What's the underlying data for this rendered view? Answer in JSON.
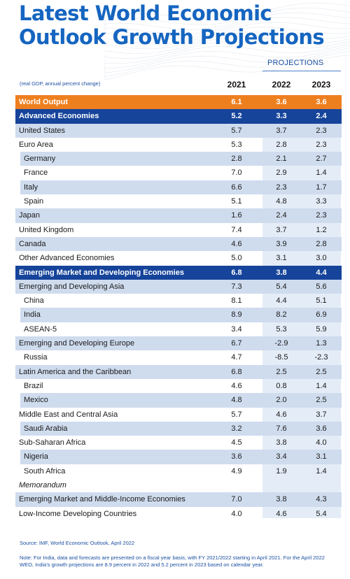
{
  "title_line1": "Latest World Economic",
  "title_line2": "Outlook Growth Projections",
  "projections_label": "PROJECTIONS",
  "unit_note": "(real GDP, annual percent change)",
  "years": [
    "2021",
    "2022",
    "2023"
  ],
  "source": "Source: IMF, World Economic Outlook, April 2022",
  "note": "Note: For India, data and forecasts are presented on a fiscal year basis, with FY 2021/2022 starting in April 2021. For the April 2022 WEO, India's growth projections are 8.9 percent in 2022 and 5.2 percent in 2023 based on calendar year.",
  "colors": {
    "title": "#1565c0",
    "world": "#ee7f1f",
    "navy": "#16449a",
    "shade": "#cfdcee",
    "projection_shade": "#e4ecf7"
  },
  "chart_data": {
    "type": "table",
    "columns": [
      "2021",
      "2022",
      "2023"
    ],
    "rows": [
      {
        "label": "World Output",
        "values": [
          "6.1",
          "3.6",
          "3.6"
        ],
        "style": "world"
      },
      {
        "label": "Advanced Economies",
        "values": [
          "5.2",
          "3.3",
          "2.4"
        ],
        "style": "navy"
      },
      {
        "label": "United States",
        "values": [
          "5.7",
          "3.7",
          "2.3"
        ],
        "style": "shaded"
      },
      {
        "label": "Euro Area",
        "values": [
          "5.3",
          "2.8",
          "2.3"
        ],
        "style": "plain"
      },
      {
        "label": "Germany",
        "values": [
          "2.8",
          "2.1",
          "2.7"
        ],
        "style": "shaded-indent"
      },
      {
        "label": "France",
        "values": [
          "7.0",
          "2.9",
          "1.4"
        ],
        "style": "indent"
      },
      {
        "label": "Italy",
        "values": [
          "6.6",
          "2.3",
          "1.7"
        ],
        "style": "shaded-indent"
      },
      {
        "label": "Spain",
        "values": [
          "5.1",
          "4.8",
          "3.3"
        ],
        "style": "indent"
      },
      {
        "label": "Japan",
        "values": [
          "1.6",
          "2.4",
          "2.3"
        ],
        "style": "shaded"
      },
      {
        "label": "United Kingdom",
        "values": [
          "7.4",
          "3.7",
          "1.2"
        ],
        "style": "plain"
      },
      {
        "label": "Canada",
        "values": [
          "4.6",
          "3.9",
          "2.8"
        ],
        "style": "shaded"
      },
      {
        "label": "Other Advanced Economies",
        "values": [
          "5.0",
          "3.1",
          "3.0"
        ],
        "style": "plain"
      },
      {
        "label": "Emerging Market and Developing Economies",
        "values": [
          "6.8",
          "3.8",
          "4.4"
        ],
        "style": "navy"
      },
      {
        "label": "Emerging and Developing Asia",
        "values": [
          "7.3",
          "5.4",
          "5.6"
        ],
        "style": "shaded"
      },
      {
        "label": "China",
        "values": [
          "8.1",
          "4.4",
          "5.1"
        ],
        "style": "indent"
      },
      {
        "label": "India",
        "values": [
          "8.9",
          "8.2",
          "6.9"
        ],
        "style": "shaded-indent"
      },
      {
        "label": "ASEAN-5",
        "values": [
          "3.4",
          "5.3",
          "5.9"
        ],
        "style": "indent"
      },
      {
        "label": "Emerging and Developing Europe",
        "values": [
          "6.7",
          "-2.9",
          "1.3"
        ],
        "style": "shaded"
      },
      {
        "label": "Russia",
        "values": [
          "4.7",
          "-8.5",
          "-2.3"
        ],
        "style": "indent"
      },
      {
        "label": "Latin America and the Caribbean",
        "values": [
          "6.8",
          "2.5",
          "2.5"
        ],
        "style": "shaded"
      },
      {
        "label": "Brazil",
        "values": [
          "4.6",
          "0.8",
          "1.4"
        ],
        "style": "indent"
      },
      {
        "label": "Mexico",
        "values": [
          "4.8",
          "2.0",
          "2.5"
        ],
        "style": "shaded-indent"
      },
      {
        "label": "Middle East and Central Asia",
        "values": [
          "5.7",
          "4.6",
          "3.7"
        ],
        "style": "plain"
      },
      {
        "label": "Saudi Arabia",
        "values": [
          "3.2",
          "7.6",
          "3.6"
        ],
        "style": "shaded-indent"
      },
      {
        "label": "Sub-Saharan Africa",
        "values": [
          "4.5",
          "3.8",
          "4.0"
        ],
        "style": "plain"
      },
      {
        "label": "Nigeria",
        "values": [
          "3.6",
          "3.4",
          "3.1"
        ],
        "style": "shaded-indent"
      },
      {
        "label": "South Africa",
        "values": [
          "4.9",
          "1.9",
          "1.4"
        ],
        "style": "indent"
      },
      {
        "label": "Memorandum",
        "values": [
          "",
          "",
          ""
        ],
        "style": "memo"
      },
      {
        "label": "Emerging Market and Middle-Income Economies",
        "values": [
          "7.0",
          "3.8",
          "4.3"
        ],
        "style": "shaded"
      },
      {
        "label": "Low-Income Developing Countries",
        "values": [
          "4.0",
          "4.6",
          "5.4"
        ],
        "style": "plain"
      }
    ]
  }
}
